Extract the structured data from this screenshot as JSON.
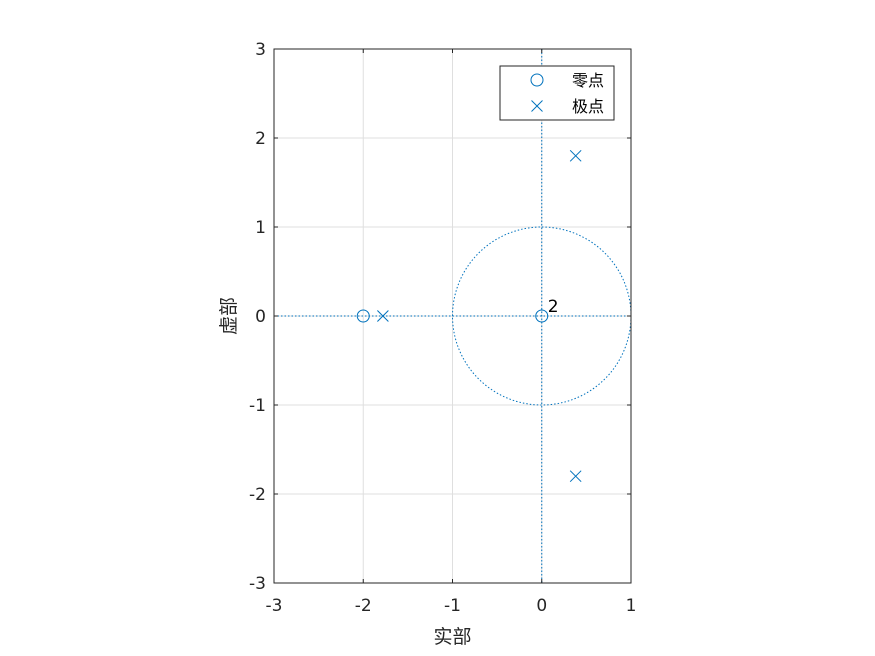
{
  "chart_data": {
    "type": "scatter",
    "title": "",
    "xlabel": "实部",
    "ylabel": "虚部",
    "xlim": [
      -3,
      1
    ],
    "ylim": [
      -3,
      3
    ],
    "xticks": [
      -3,
      -2,
      -1,
      0,
      1
    ],
    "yticks": [
      -3,
      -2,
      -1,
      0,
      1,
      2,
      3
    ],
    "grid": true,
    "legend_position": "top-right",
    "unit_circle": true,
    "series_color": "#0072BD",
    "series": [
      {
        "name": "零点",
        "marker": "circle",
        "points": [
          {
            "x": -2,
            "y": 0
          },
          {
            "x": 0,
            "y": 0
          }
        ]
      },
      {
        "name": "极点",
        "marker": "x",
        "points": [
          {
            "x": -1.78,
            "y": 0
          },
          {
            "x": 0.38,
            "y": 1.8
          },
          {
            "x": 0.38,
            "y": -1.8
          }
        ]
      }
    ],
    "annotations": [
      {
        "text": "2",
        "x": 0,
        "y": 0
      }
    ]
  }
}
